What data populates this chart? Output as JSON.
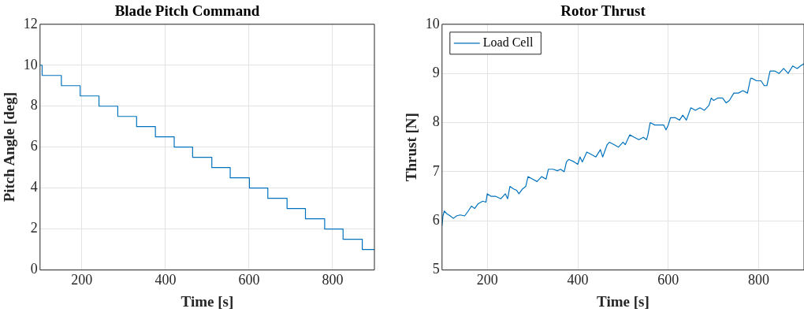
{
  "chart_data": [
    {
      "type": "step",
      "title": "Blade Pitch Command",
      "xlabel": "Time [s]",
      "ylabel": "Pitch Angle [deg]",
      "xlim": [
        100,
        900
      ],
      "xticks": [
        200,
        400,
        600,
        800
      ],
      "ylim": [
        0,
        12
      ],
      "yticks": [
        0,
        2,
        4,
        6,
        8,
        10,
        12
      ],
      "grid": true,
      "legend": false,
      "series": [
        {
          "color": "#0072bd",
          "x": [
            100,
            105,
            151,
            196,
            241,
            286,
            331,
            376,
            421,
            465,
            511,
            555,
            601,
            645,
            691,
            735,
            781,
            825,
            871,
            900
          ],
          "values": [
            10,
            9.5,
            9,
            8.5,
            8,
            7.5,
            7,
            6.5,
            6,
            5.5,
            5,
            4.5,
            4,
            3.5,
            3,
            2.5,
            2,
            1.5,
            1,
            1
          ]
        }
      ]
    },
    {
      "type": "line",
      "title": "Rotor Thrust",
      "xlabel": "Time [s]",
      "ylabel": "Thrust [N]",
      "xlim": [
        100,
        900
      ],
      "xticks": [
        200,
        400,
        600,
        800
      ],
      "ylim": [
        5,
        10
      ],
      "yticks": [
        5,
        6,
        7,
        8,
        9,
        10
      ],
      "grid": true,
      "legend": "top left",
      "series": [
        {
          "name": "Load Cell",
          "color": "#0072bd",
          "x": [
            100,
            102,
            105,
            110,
            118,
            125,
            132,
            140,
            150,
            158,
            165,
            172,
            180,
            190,
            197,
            200,
            208,
            218,
            230,
            240,
            245,
            250,
            258,
            265,
            270,
            278,
            285,
            290,
            300,
            310,
            320,
            330,
            335,
            345,
            355,
            362,
            370,
            375,
            380,
            392,
            400,
            405,
            410,
            420,
            430,
            440,
            450,
            455,
            465,
            470,
            480,
            490,
            500,
            505,
            515,
            525,
            535,
            545,
            552,
            555,
            560,
            570,
            580,
            590,
            595,
            600,
            605,
            615,
            625,
            632,
            640,
            650,
            660,
            670,
            680,
            690,
            695,
            700,
            710,
            720,
            728,
            735,
            745,
            755,
            765,
            775,
            782,
            785,
            795,
            805,
            812,
            818,
            825,
            835,
            845,
            855,
            865,
            875,
            885,
            892,
            900
          ],
          "values": [
            5.9,
            6.1,
            6.2,
            6.15,
            6.1,
            6.05,
            6.1,
            6.12,
            6.1,
            6.2,
            6.3,
            6.25,
            6.35,
            6.4,
            6.38,
            6.55,
            6.5,
            6.5,
            6.45,
            6.55,
            6.45,
            6.7,
            6.65,
            6.62,
            6.55,
            6.65,
            6.7,
            6.9,
            6.85,
            6.8,
            6.9,
            6.85,
            7.05,
            7.05,
            7.02,
            7.05,
            7.0,
            7.2,
            7.25,
            7.2,
            7.15,
            7.3,
            7.2,
            7.4,
            7.35,
            7.3,
            7.45,
            7.3,
            7.55,
            7.6,
            7.55,
            7.5,
            7.6,
            7.55,
            7.75,
            7.7,
            7.65,
            7.7,
            7.65,
            7.75,
            8.0,
            7.95,
            7.95,
            7.95,
            7.85,
            7.95,
            8.1,
            8.1,
            8.05,
            8.15,
            8.05,
            8.3,
            8.25,
            8.3,
            8.25,
            8.35,
            8.5,
            8.45,
            8.5,
            8.5,
            8.4,
            8.45,
            8.6,
            8.6,
            8.65,
            8.6,
            8.9,
            8.9,
            8.85,
            8.85,
            8.75,
            8.75,
            9.05,
            9.05,
            9.0,
            9.1,
            9.0,
            9.15,
            9.1,
            9.15,
            9.2
          ]
        }
      ]
    }
  ]
}
